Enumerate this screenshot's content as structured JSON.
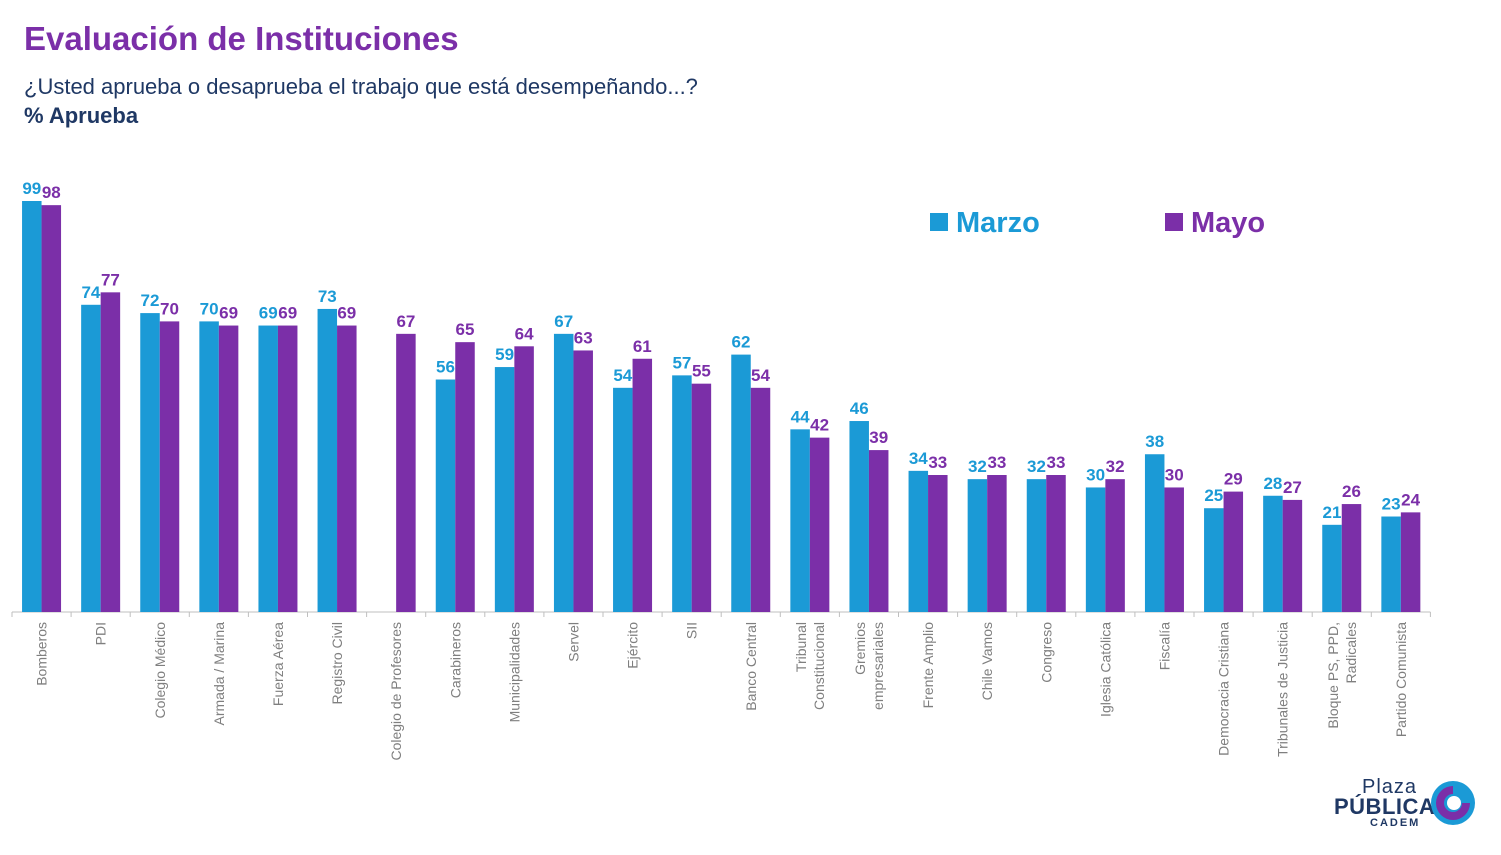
{
  "header": {
    "title": "Evaluación de Instituciones",
    "subtitle": "¿Usted aprueba o desaprueba el trabajo que está desempeñando...?",
    "metric": "% Aprueba"
  },
  "logo": {
    "line1": "Plaza",
    "line2": "PÚBLICA",
    "line3": "CADEM"
  },
  "colors": {
    "marzo": "#1b9ad6",
    "mayo": "#7b2fa8",
    "title": "#7b2fa8",
    "text": "#1f3864",
    "axis_label": "#7f7f7f"
  },
  "chart_data": {
    "type": "bar",
    "title": "Evaluación de Instituciones",
    "ylabel": "% Aprueba",
    "ylim": [
      0,
      100
    ],
    "grid": false,
    "legend_position": "top-right",
    "categories": [
      "Bomberos",
      "PDI",
      "Colegio Médico",
      "Armada / Marina",
      "Fuerza Aérea",
      "Registro Civil",
      "Colegio de Profesores",
      "Carabineros",
      "Municipalidades",
      "Servel",
      "Ejército",
      "SII",
      "Banco Central",
      "Tribunal\nConstitucional",
      "Gremios\nempresariales",
      "Frente Amplio",
      "Chile Vamos",
      "Congreso",
      "Iglesia Católica",
      "Fiscalía",
      "Democracia Cristiana",
      "Tribunales de Justicia",
      "Bloque PS, PPD,\nRadicales",
      "Partido Comunista"
    ],
    "series": [
      {
        "name": "Marzo",
        "values": [
          99,
          74,
          72,
          70,
          69,
          73,
          null,
          56,
          59,
          67,
          54,
          57,
          62,
          44,
          46,
          34,
          32,
          32,
          30,
          38,
          25,
          28,
          21,
          23
        ]
      },
      {
        "name": "Mayo",
        "values": [
          98,
          77,
          70,
          69,
          69,
          69,
          67,
          65,
          64,
          63,
          61,
          55,
          54,
          42,
          39,
          33,
          33,
          33,
          32,
          30,
          29,
          27,
          26,
          24
        ]
      }
    ]
  }
}
